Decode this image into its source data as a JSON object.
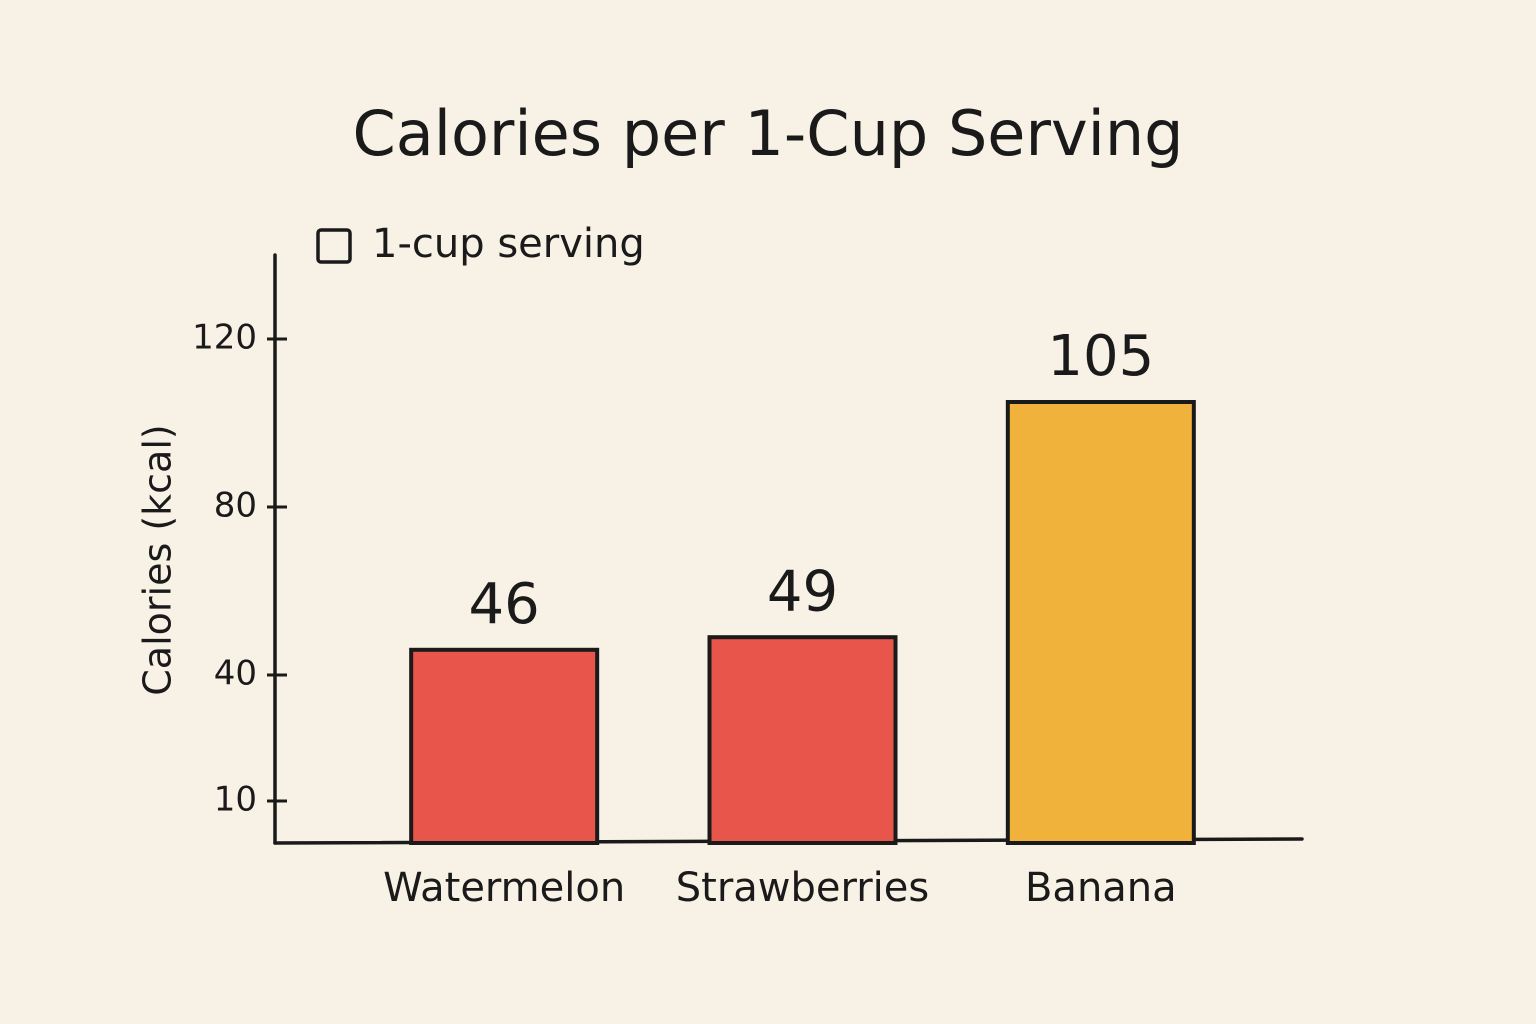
{
  "chart_data": {
    "type": "bar",
    "title": "Calories per 1-Cup Serving",
    "y_label": "Calories (kcal)",
    "categories": [
      "Watermelon",
      "Strawberries",
      "Banana"
    ],
    "series": [
      {
        "name": "1-cup serving",
        "values": [
          46,
          49,
          105
        ],
        "colors": [
          "#e8554b",
          "#e8554b",
          "#f0b23a"
        ]
      }
    ],
    "ylim": [
      0,
      140
    ],
    "yticks": [
      10,
      40,
      80,
      120
    ],
    "grid": false,
    "legend": "top-left"
  }
}
